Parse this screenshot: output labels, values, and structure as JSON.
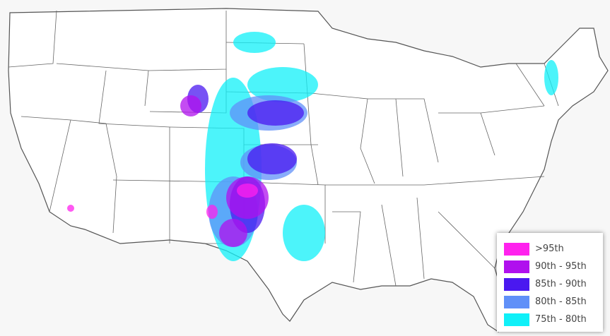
{
  "map": {
    "region": "Contiguous United States",
    "basemap": "terrain hillshade with state boundaries",
    "legend": {
      "items": [
        {
          "label": ">95th",
          "color": "#ff22ee"
        },
        {
          "label": "90th - 95th",
          "color": "#b010ee"
        },
        {
          "label": "85th - 90th",
          "color": "#4a18f0"
        },
        {
          "label": "80th - 85th",
          "color": "#6090f8"
        },
        {
          "label": "75th - 80th",
          "color": "#10f0f8"
        }
      ]
    }
  }
}
